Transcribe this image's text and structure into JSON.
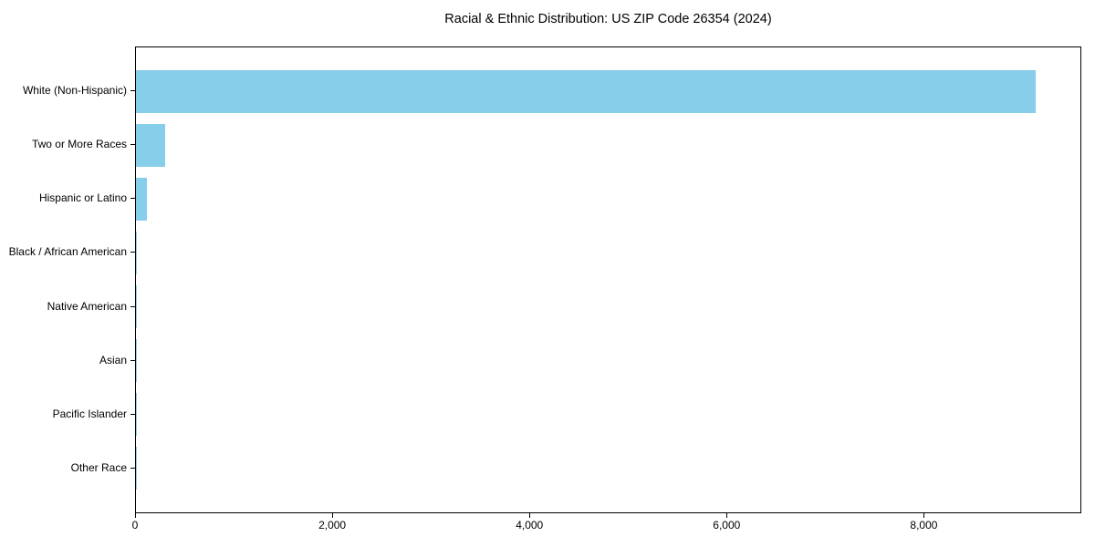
{
  "chart_data": {
    "type": "bar",
    "orientation": "horizontal",
    "title": "Racial & Ethnic Distribution: US ZIP Code 26354 (2024)",
    "xlabel": "",
    "ylabel": "",
    "categories": [
      "White (Non-Hispanic)",
      "Two or More Races",
      "Hispanic or Latino",
      "Black / African American",
      "Native American",
      "Asian",
      "Pacific Islander",
      "Other Race"
    ],
    "values": [
      9140,
      295,
      110,
      10,
      4,
      5,
      1,
      2
    ],
    "xlim": [
      0,
      9597
    ],
    "xticks": [
      0,
      2000,
      4000,
      6000,
      8000
    ],
    "xtick_labels": [
      "0",
      "2,000",
      "4,000",
      "6,000",
      "8,000"
    ],
    "bar_color": "#87CEEB",
    "axis_color": "#000000",
    "background_color": "#ffffff",
    "grid": false,
    "legend": null
  }
}
